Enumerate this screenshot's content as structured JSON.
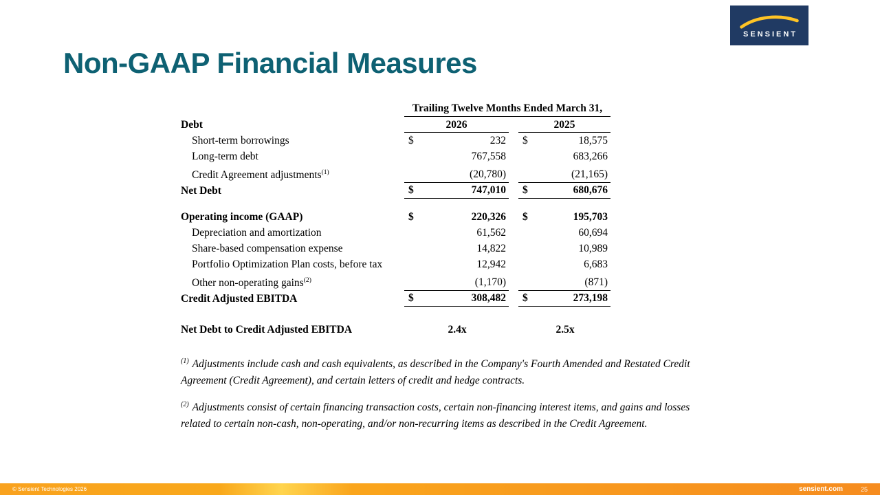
{
  "slide": {
    "title": "Non-GAAP Financial Measures"
  },
  "logo": {
    "text": "SENSIENT",
    "navy": "#203A63",
    "yellow": "#FFC425"
  },
  "table": {
    "period_header": "Trailing Twelve Months Ended March 31,",
    "section_label": "Debt",
    "col_years": [
      "2026",
      "2025"
    ],
    "rows": [
      {
        "label": "Short-term borrowings",
        "indent": true,
        "d1": "$",
        "v1": "232",
        "d2": "$",
        "v2": "18,575"
      },
      {
        "label": "Long-term debt",
        "indent": true,
        "v1": "767,558",
        "v2": "683,266"
      },
      {
        "label": "Credit Agreement adjustments",
        "sup": "(1)",
        "indent": true,
        "v1": "(20,780)",
        "v2": "(21,165)",
        "rule": true,
        "tall": true
      },
      {
        "label": "Net Debt",
        "bold": true,
        "d1": "$",
        "v1": "747,010",
        "d2": "$",
        "v2": "680,676",
        "rule": true
      },
      {
        "spacer": 15
      },
      {
        "label": "Operating income (GAAP)",
        "bold": true,
        "d1": "$",
        "v1": "220,326",
        "d2": "$",
        "v2": "195,703"
      },
      {
        "label": "Depreciation and amortization",
        "indent": true,
        "v1": "61,562",
        "v2": "60,694"
      },
      {
        "label": "Share-based compensation expense",
        "indent": true,
        "v1": "14,822",
        "v2": "10,989"
      },
      {
        "label": "Portfolio Optimization Plan costs, before tax",
        "indent": true,
        "v1": "12,942",
        "v2": "6,683"
      },
      {
        "label": "Other non-operating gains",
        "sup": "(2)",
        "indent": true,
        "v1": "(1,170)",
        "v2": "(871)",
        "rule": true,
        "tall": true
      },
      {
        "label": "Credit Adjusted EBITDA",
        "bold": true,
        "d1": "$",
        "v1": "308,482",
        "d2": "$",
        "v2": "273,198",
        "rule": true
      },
      {
        "spacer": 22
      },
      {
        "label": "Net Debt to Credit Adjusted EBITDA",
        "bold": true,
        "center": true,
        "v1": "2.4x",
        "v2": "2.5x"
      }
    ]
  },
  "footnotes": [
    {
      "sup": "(1)",
      "text": "Adjustments include cash and cash equivalents, as described in the Company's Fourth Amended and Restated Credit Agreement (Credit Agreement), and certain letters of credit and hedge contracts."
    },
    {
      "sup": "(2)",
      "text": "Adjustments consist of certain financing transaction costs, certain non-financing interest items, and gains and losses related to certain non-cash, non-operating, and/or non-recurring items as described in the Credit Agreement."
    }
  ],
  "footer": {
    "copyright": "© Sensient Technologies 2026",
    "website": "sensient.com",
    "page_number": "25"
  }
}
